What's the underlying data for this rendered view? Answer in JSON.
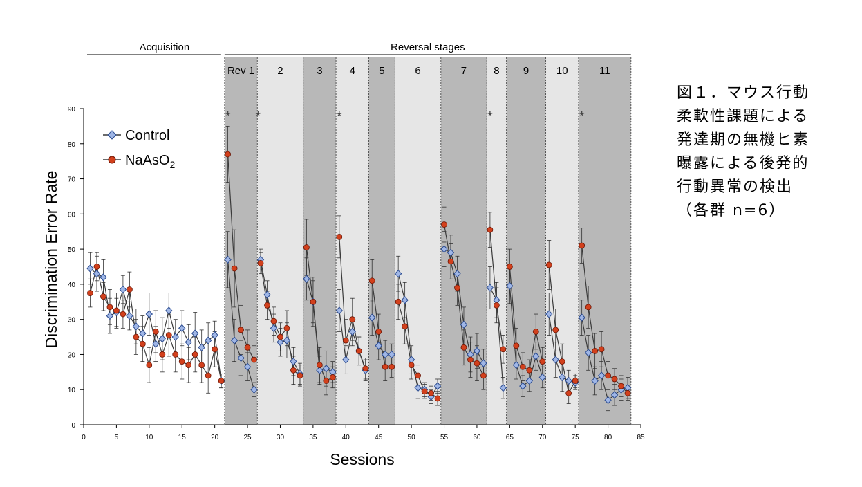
{
  "caption": "図１．マウス行動柔軟性課題による発達期の無機ヒ素曝露による後発的行動異常の検出（各群 n=6）",
  "colors": {
    "control_fill": "#9fb6e6",
    "control_edge": "#2b4b8f",
    "naaso2_fill": "#d2401c",
    "naaso2_edge": "#6a1505",
    "band_dark": "#b8b8b8",
    "band_light": "#e6e6e6",
    "line": "#3a3a3a"
  },
  "chart_data": {
    "type": "line",
    "xlabel": "Sessions",
    "ylabel": "Discrimination Error Rate",
    "xlim": [
      0,
      85
    ],
    "ylim": [
      0,
      90
    ],
    "xticks": [
      0,
      5,
      10,
      15,
      20,
      25,
      30,
      35,
      40,
      45,
      50,
      55,
      60,
      65,
      70,
      75,
      80,
      85
    ],
    "yticks": [
      0,
      10,
      20,
      30,
      40,
      50,
      60,
      70,
      80,
      90
    ],
    "section_labels": {
      "acquisition": "Acquisition",
      "reversal": "Reversal stages"
    },
    "stages": [
      {
        "label": "Rev 1",
        "start": 21.5,
        "end": 26.5,
        "shade": "dark"
      },
      {
        "label": "2",
        "start": 26.5,
        "end": 33.5,
        "shade": "light"
      },
      {
        "label": "3",
        "start": 33.5,
        "end": 38.5,
        "shade": "dark"
      },
      {
        "label": "4",
        "start": 38.5,
        "end": 43.5,
        "shade": "light"
      },
      {
        "label": "5",
        "start": 43.5,
        "end": 47.5,
        "shade": "dark"
      },
      {
        "label": "6",
        "start": 47.5,
        "end": 54.5,
        "shade": "light"
      },
      {
        "label": "7",
        "start": 54.5,
        "end": 61.5,
        "shade": "dark"
      },
      {
        "label": "8",
        "start": 61.5,
        "end": 64.5,
        "shade": "light"
      },
      {
        "label": "9",
        "start": 64.5,
        "end": 70.5,
        "shade": "dark"
      },
      {
        "label": "10",
        "start": 70.5,
        "end": 75.5,
        "shade": "light"
      },
      {
        "label": "11",
        "start": 75.5,
        "end": 83.5,
        "shade": "dark"
      }
    ],
    "significance_marks": [
      {
        "label": "*",
        "x": 22
      },
      {
        "label": "*",
        "x": 26.6
      },
      {
        "label": "*",
        "x": 39
      },
      {
        "label": "*",
        "x": 62
      },
      {
        "label": "*",
        "x": 76
      }
    ],
    "segments": [
      [
        1,
        21
      ],
      [
        22,
        26
      ],
      [
        27,
        33
      ],
      [
        34,
        38
      ],
      [
        39,
        43
      ],
      [
        44,
        47
      ],
      [
        48,
        54
      ],
      [
        55,
        61
      ],
      [
        62,
        64
      ],
      [
        65,
        70
      ],
      [
        71,
        75
      ],
      [
        76,
        83
      ]
    ],
    "series": [
      {
        "name": "Control",
        "marker": "diamond",
        "points": [
          [
            1,
            44.5,
            4.5
          ],
          [
            2,
            43,
            5
          ],
          [
            3,
            42,
            5
          ],
          [
            4,
            31,
            5
          ],
          [
            5,
            32,
            4
          ],
          [
            6,
            38.5,
            4
          ],
          [
            7,
            31,
            4
          ],
          [
            8,
            28,
            5
          ],
          [
            9,
            26,
            5
          ],
          [
            10,
            31.5,
            6
          ],
          [
            11,
            23,
            5
          ],
          [
            12,
            24.5,
            6
          ],
          [
            13,
            32.5,
            5
          ],
          [
            14,
            25,
            5
          ],
          [
            15,
            27.5,
            5
          ],
          [
            16,
            23.5,
            5
          ],
          [
            17,
            26,
            6
          ],
          [
            18,
            22,
            5
          ],
          [
            19,
            24,
            5
          ],
          [
            20,
            25.5,
            4
          ],
          [
            21,
            12.5,
            2
          ],
          [
            22,
            47,
            8
          ],
          [
            23,
            24,
            6
          ],
          [
            24,
            19,
            5
          ],
          [
            25,
            16.5,
            4
          ],
          [
            26,
            10,
            2
          ],
          [
            27,
            47,
            3
          ],
          [
            28,
            37,
            4
          ],
          [
            29,
            27.5,
            4
          ],
          [
            30,
            23.5,
            4
          ],
          [
            31,
            24,
            5
          ],
          [
            32,
            18,
            4
          ],
          [
            33,
            14.5,
            3
          ],
          [
            34,
            41.5,
            6
          ],
          [
            35,
            35,
            6
          ],
          [
            36,
            15.5,
            4
          ],
          [
            37,
            16,
            5
          ],
          [
            38,
            15,
            3
          ],
          [
            39,
            32.5,
            6
          ],
          [
            40,
            18.5,
            4
          ],
          [
            41,
            26.5,
            4
          ],
          [
            42,
            21,
            4
          ],
          [
            43,
            15.5,
            3
          ],
          [
            44,
            30.5,
            5
          ],
          [
            45,
            22.5,
            4
          ],
          [
            46,
            20,
            4
          ],
          [
            47,
            20,
            3
          ],
          [
            48,
            43,
            5
          ],
          [
            49,
            35.5,
            5
          ],
          [
            50,
            18.5,
            4
          ],
          [
            51,
            10.5,
            3
          ],
          [
            52,
            10,
            2
          ],
          [
            53,
            8,
            2
          ],
          [
            54,
            11,
            2
          ],
          [
            55,
            50,
            5
          ],
          [
            56,
            49,
            5
          ],
          [
            57,
            43,
            5
          ],
          [
            58,
            28.5,
            5
          ],
          [
            59,
            20,
            5
          ],
          [
            60,
            21,
            5
          ],
          [
            61,
            17.5,
            4
          ],
          [
            62,
            39,
            6
          ],
          [
            63,
            35.5,
            5
          ],
          [
            64,
            10.5,
            3
          ],
          [
            65,
            39.5,
            5
          ],
          [
            66,
            17,
            4
          ],
          [
            67,
            11,
            3
          ],
          [
            68,
            12.5,
            3
          ],
          [
            69,
            19.5,
            4
          ],
          [
            70,
            13.5,
            3
          ],
          [
            71,
            31.5,
            6
          ],
          [
            72,
            18.5,
            5
          ],
          [
            73,
            13.5,
            4
          ],
          [
            74,
            12.5,
            3
          ],
          [
            75,
            12,
            2
          ],
          [
            76,
            30.5,
            5
          ],
          [
            77,
            20.5,
            5
          ],
          [
            78,
            12.5,
            4
          ],
          [
            79,
            14,
            4
          ],
          [
            80,
            7,
            3
          ],
          [
            81,
            8.5,
            3
          ],
          [
            82,
            10,
            3
          ],
          [
            83,
            10.5,
            3
          ]
        ]
      },
      {
        "name": "NaAsO2",
        "marker": "circle",
        "points": [
          [
            1,
            37.5,
            4
          ],
          [
            2,
            45,
            4
          ],
          [
            3,
            36.5,
            4
          ],
          [
            4,
            33.5,
            5
          ],
          [
            5,
            32.5,
            5
          ],
          [
            6,
            31.5,
            4
          ],
          [
            7,
            38.5,
            5
          ],
          [
            8,
            25,
            5
          ],
          [
            9,
            23,
            5
          ],
          [
            10,
            17,
            5
          ],
          [
            11,
            26.5,
            6
          ],
          [
            12,
            20,
            5
          ],
          [
            13,
            25.5,
            6
          ],
          [
            14,
            20,
            5
          ],
          [
            15,
            18,
            5
          ],
          [
            16,
            17,
            5
          ],
          [
            17,
            20,
            5
          ],
          [
            18,
            17,
            5
          ],
          [
            19,
            14,
            5
          ],
          [
            20,
            21.5,
            5
          ],
          [
            21,
            12.5,
            2
          ],
          [
            22,
            77,
            8
          ],
          [
            23,
            44.5,
            11
          ],
          [
            24,
            27,
            7
          ],
          [
            25,
            22,
            5
          ],
          [
            26,
            18.5,
            4
          ],
          [
            27,
            46,
            3
          ],
          [
            28,
            34,
            4
          ],
          [
            29,
            29.5,
            4
          ],
          [
            30,
            25,
            4
          ],
          [
            31,
            27.5,
            5
          ],
          [
            32,
            15.5,
            4
          ],
          [
            33,
            14,
            3
          ],
          [
            34,
            50.5,
            8
          ],
          [
            35,
            35,
            7
          ],
          [
            36,
            17,
            5
          ],
          [
            37,
            12.5,
            4
          ],
          [
            38,
            13.5,
            3
          ],
          [
            39,
            53.5,
            6
          ],
          [
            40,
            24,
            6
          ],
          [
            41,
            30,
            6
          ],
          [
            42,
            21,
            4
          ],
          [
            43,
            16,
            3
          ],
          [
            44,
            41,
            6
          ],
          [
            45,
            26.5,
            5
          ],
          [
            46,
            16.5,
            4
          ],
          [
            47,
            16.5,
            3
          ],
          [
            48,
            35,
            5
          ],
          [
            49,
            28,
            5
          ],
          [
            50,
            17,
            4
          ],
          [
            51,
            14,
            3
          ],
          [
            52,
            9.5,
            2
          ],
          [
            53,
            9,
            2
          ],
          [
            54,
            7.5,
            2
          ],
          [
            55,
            57,
            5
          ],
          [
            56,
            46.5,
            5
          ],
          [
            57,
            39,
            5
          ],
          [
            58,
            22,
            5
          ],
          [
            59,
            18.5,
            5
          ],
          [
            60,
            17.5,
            5
          ],
          [
            61,
            14,
            4
          ],
          [
            62,
            55.5,
            5
          ],
          [
            63,
            34,
            5
          ],
          [
            64,
            21.5,
            4
          ],
          [
            65,
            45,
            5
          ],
          [
            66,
            22.5,
            5
          ],
          [
            67,
            16.5,
            4
          ],
          [
            68,
            15.5,
            3
          ],
          [
            69,
            26.5,
            5
          ],
          [
            70,
            18,
            4
          ],
          [
            71,
            45.5,
            7
          ],
          [
            72,
            27,
            6
          ],
          [
            73,
            18,
            5
          ],
          [
            74,
            9,
            3
          ],
          [
            75,
            12.5,
            2
          ],
          [
            76,
            51,
            5
          ],
          [
            77,
            33.5,
            6
          ],
          [
            78,
            21,
            5
          ],
          [
            79,
            21.5,
            5
          ],
          [
            80,
            14,
            4
          ],
          [
            81,
            13,
            3
          ],
          [
            82,
            11,
            3
          ],
          [
            83,
            9,
            2
          ]
        ]
      }
    ],
    "legend": {
      "position": "top-left",
      "entries": [
        "Control",
        "NaAsO2"
      ]
    }
  }
}
